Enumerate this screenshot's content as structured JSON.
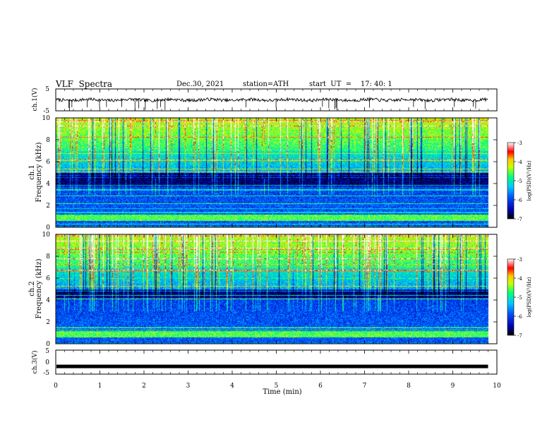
{
  "header": {
    "title": "VLF  Spectra",
    "date": "Dec.30, 2021",
    "station": "station=ATH",
    "start": "start  UT  =    17: 40: 1"
  },
  "chart_data": [
    {
      "type": "line",
      "panel": "ch1-waveform",
      "ylabel": "ch.1(V)",
      "ylim": [
        -5,
        5
      ],
      "yticks": [
        "5",
        "-5"
      ],
      "xlim": [
        0,
        10
      ],
      "data_extent_min": [
        0,
        9.8
      ],
      "baseline_v": 0,
      "spike_min_v": -5,
      "color": "#000000"
    },
    {
      "type": "heatmap",
      "panel": "ch1-spectrogram",
      "ylabel": "ch.1\nFrequency  (kHz)",
      "ylim": [
        0,
        10
      ],
      "yticks": [
        "0",
        "2",
        "4",
        "6",
        "8",
        "10"
      ],
      "xlim": [
        0,
        10
      ],
      "data_extent_min": [
        0,
        9.8
      ],
      "colorbar": {
        "label": "log(PSD)(V²/Hz)",
        "range": [
          -7,
          -3
        ],
        "ticks": [
          "-3",
          "-4",
          "-5",
          "-6",
          "-7"
        ]
      },
      "quiet_band_khz": [
        3.8,
        5.0
      ],
      "colormap": [
        "#000000",
        "#0000ff",
        "#00c8ff",
        "#00ff7f",
        "#ffff00",
        "#ff0000",
        "#ffffff"
      ]
    },
    {
      "type": "heatmap",
      "panel": "ch2-spectrogram",
      "ylabel": "ch.2\nFrequency  (kHz)",
      "ylim": [
        0,
        10
      ],
      "yticks": [
        "0",
        "2",
        "4",
        "6",
        "8",
        "10"
      ],
      "xlim": [
        0,
        10
      ],
      "data_extent_min": [
        0,
        9.8
      ],
      "colorbar": {
        "label": "log(PSD)(V²/Hz)",
        "range": [
          -7,
          -3
        ],
        "ticks": [
          "-3",
          "-4",
          "-5",
          "-6",
          "-7"
        ]
      },
      "quiet_band_khz": [
        4.2,
        5.0
      ],
      "colormap": [
        "#000000",
        "#0000ff",
        "#00c8ff",
        "#00ff7f",
        "#ffff00",
        "#ff0000",
        "#ffffff"
      ]
    },
    {
      "type": "line",
      "panel": "ch3-waveform",
      "ylabel": "ch.3(V)",
      "ylim": [
        -5,
        5
      ],
      "yticks": [
        "5",
        "0",
        "-5"
      ],
      "xlim": [
        0,
        10
      ],
      "data_extent_min": [
        0,
        9.8
      ],
      "baseline_v": -1.8,
      "color": "#000000"
    }
  ],
  "xaxis": {
    "label": "Time  (min)",
    "ticks": [
      "0",
      "1",
      "2",
      "3",
      "4",
      "5",
      "6",
      "7",
      "8",
      "9",
      "10"
    ]
  }
}
